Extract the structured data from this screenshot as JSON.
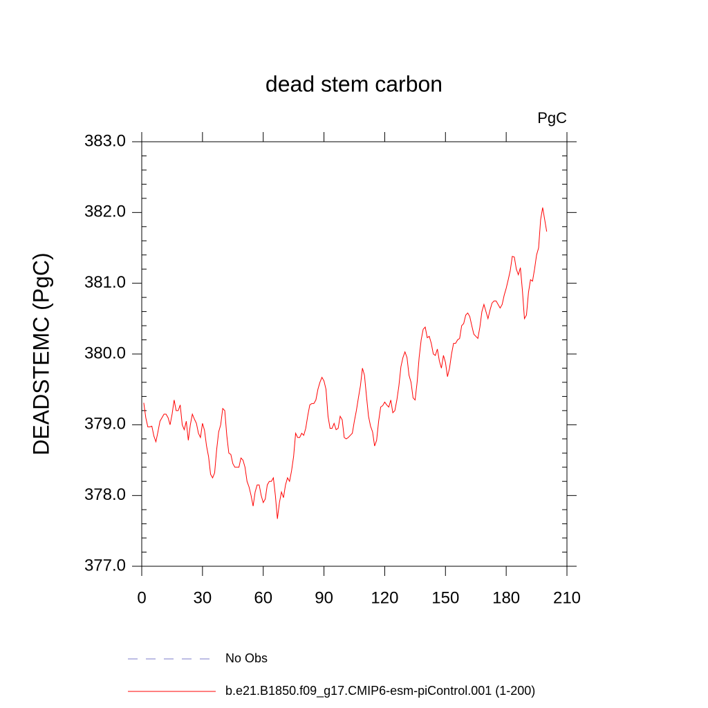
{
  "chart_data": {
    "type": "line",
    "title": "dead stem carbon",
    "units": "PgC",
    "y_label": "DEADSTEMC  (PgC)",
    "xlim": [
      0,
      210
    ],
    "xticks": [
      0,
      30,
      60,
      90,
      120,
      150,
      180,
      210
    ],
    "ylim": [
      377,
      383
    ],
    "yticks": [
      {
        "value": 377,
        "label": "377.0"
      },
      {
        "value": 378,
        "label": "378.0"
      },
      {
        "value": 379,
        "label": "379.0"
      },
      {
        "value": 380,
        "label": "380.0"
      },
      {
        "value": 381,
        "label": "381.0"
      },
      {
        "value": 382,
        "label": "382.0"
      },
      {
        "value": 383,
        "label": "383.0"
      }
    ],
    "reference_lines": [
      {
        "name": "No Obs",
        "color": "#7b7bc8",
        "dash": "14 12"
      }
    ],
    "x": [
      1,
      2,
      3,
      4,
      5,
      6,
      7,
      8,
      9,
      10,
      11,
      12,
      13,
      14,
      15,
      16,
      17,
      18,
      19,
      20,
      21,
      22,
      23,
      24,
      25,
      26,
      27,
      28,
      29,
      30,
      31,
      32,
      33,
      34,
      35,
      36,
      37,
      38,
      39,
      40,
      41,
      42,
      43,
      44,
      45,
      46,
      47,
      48,
      49,
      50,
      51,
      52,
      53,
      54,
      55,
      56,
      57,
      58,
      59,
      60,
      61,
      62,
      63,
      64,
      65,
      66,
      67,
      68,
      69,
      70,
      71,
      72,
      73,
      74,
      75,
      76,
      77,
      78,
      79,
      80,
      81,
      82,
      83,
      84,
      85,
      86,
      87,
      88,
      89,
      90,
      91,
      92,
      93,
      94,
      95,
      96,
      97,
      98,
      99,
      100,
      101,
      102,
      103,
      104,
      105,
      106,
      107,
      108,
      109,
      110,
      111,
      112,
      113,
      114,
      115,
      116,
      117,
      118,
      119,
      120,
      121,
      122,
      123,
      124,
      125,
      126,
      127,
      128,
      129,
      130,
      131,
      132,
      133,
      134,
      135,
      136,
      137,
      138,
      139,
      140,
      141,
      142,
      143,
      144,
      145,
      146,
      147,
      148,
      149,
      150,
      151,
      152,
      153,
      154,
      155,
      156,
      157,
      158,
      159,
      160,
      161,
      162,
      163,
      164,
      165,
      166,
      167,
      168,
      169,
      170,
      171,
      172,
      173,
      174,
      175,
      176,
      177,
      178,
      179,
      180,
      181,
      182,
      183,
      184,
      185,
      186,
      187,
      188,
      189,
      190,
      191,
      192,
      193,
      194,
      195,
      196,
      197,
      198,
      199,
      200
    ],
    "series": [
      {
        "name": "b.e21.B1850.f09_g17.CMIP6-esm-piControl.001 (1-200)",
        "color": "#ff0000",
        "values": [
          379.31,
          379.1,
          378.97,
          378.97,
          378.98,
          378.84,
          378.76,
          378.9,
          379.05,
          379.1,
          379.15,
          379.15,
          379.1,
          379.0,
          379.15,
          379.35,
          379.2,
          379.2,
          379.28,
          379.0,
          378.93,
          379.05,
          378.78,
          379.0,
          379.15,
          379.08,
          379.02,
          378.88,
          378.82,
          379.02,
          378.92,
          378.7,
          378.55,
          378.3,
          378.25,
          378.32,
          378.65,
          378.9,
          379.0,
          379.23,
          379.2,
          378.85,
          378.6,
          378.58,
          378.45,
          378.4,
          378.4,
          378.4,
          378.53,
          378.5,
          378.4,
          378.2,
          378.12,
          378.0,
          377.85,
          378.05,
          378.15,
          378.15,
          378.0,
          377.9,
          377.95,
          378.15,
          378.2,
          378.2,
          378.25,
          378.0,
          377.67,
          377.9,
          378.05,
          377.97,
          378.15,
          378.25,
          378.2,
          378.35,
          378.55,
          378.88,
          378.82,
          378.82,
          378.88,
          378.85,
          378.95,
          379.13,
          379.28,
          379.3,
          379.3,
          379.35,
          379.5,
          379.6,
          379.67,
          379.62,
          379.5,
          379.12,
          378.95,
          378.95,
          379.02,
          378.93,
          378.95,
          379.12,
          379.07,
          378.82,
          378.8,
          378.82,
          378.85,
          378.88,
          379.05,
          379.2,
          379.38,
          379.55,
          379.8,
          379.7,
          379.4,
          379.12,
          378.98,
          378.9,
          378.7,
          378.78,
          379.05,
          379.25,
          379.27,
          379.32,
          379.28,
          379.25,
          379.35,
          379.17,
          379.2,
          379.35,
          379.55,
          379.82,
          379.95,
          380.03,
          379.95,
          379.7,
          379.6,
          379.38,
          379.35,
          379.6,
          379.95,
          380.2,
          380.35,
          380.38,
          380.23,
          380.25,
          380.15,
          380.0,
          379.98,
          380.07,
          379.9,
          379.8,
          379.98,
          379.88,
          379.68,
          379.8,
          380.0,
          380.15,
          380.15,
          380.2,
          380.22,
          380.4,
          380.43,
          380.55,
          380.58,
          380.53,
          380.4,
          380.28,
          380.25,
          380.22,
          380.38,
          380.6,
          380.7,
          380.6,
          380.5,
          380.62,
          380.72,
          380.75,
          380.75,
          380.7,
          380.65,
          380.7,
          380.83,
          380.93,
          381.05,
          381.18,
          381.38,
          381.37,
          381.2,
          381.12,
          381.22,
          380.9,
          380.5,
          380.55,
          380.87,
          381.05,
          381.03,
          381.2,
          381.4,
          381.5,
          381.9,
          382.07,
          381.9,
          381.73
        ]
      }
    ]
  }
}
